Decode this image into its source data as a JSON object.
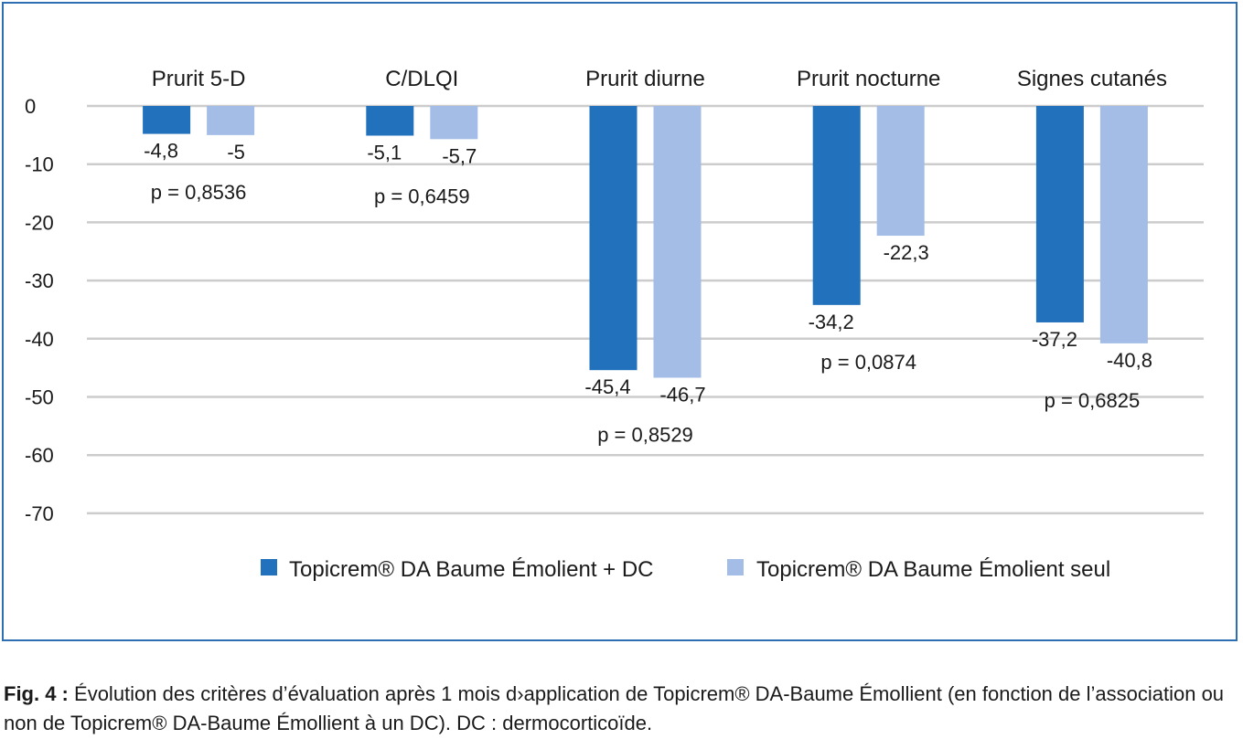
{
  "chart_data": {
    "type": "bar",
    "categories": [
      "Prurit 5-D",
      "C/DLQI",
      "Prurit diurne",
      "Prurit nocturne",
      "Signes cutanés"
    ],
    "series": [
      {
        "name": "Topicrem® DA Baume Émolient + DC",
        "values": [
          -4.8,
          -5.1,
          -45.4,
          -34.2,
          -37.2
        ],
        "color": "#2271bd",
        "labels": [
          "-4,8",
          "-5,1",
          "-45,4",
          "-34,2",
          "-37,2"
        ]
      },
      {
        "name": "Topicrem® DA Baume Émolient seul",
        "values": [
          -5,
          -5.7,
          -46.7,
          -22.3,
          -40.8
        ],
        "color": "#a3bde6",
        "labels": [
          "-5",
          "-5,7",
          "-46,7",
          "-22,3",
          "-40,8"
        ]
      }
    ],
    "p_values": [
      "p = 0,8536",
      "p = 0,6459",
      "p = 0,8529",
      "p = 0,0874",
      "p = 0,6825"
    ],
    "yticks": [
      0,
      -10,
      -20,
      -30,
      -40,
      -50,
      -60,
      -70
    ],
    "ytick_labels": [
      "0",
      "-10",
      "-20",
      "-30",
      "-40",
      "-50",
      "-60",
      "-70"
    ],
    "ylim": [
      -70,
      0
    ],
    "grid": true,
    "legend_position": "bottom-right",
    "grid_color": "#cccccc"
  },
  "caption": {
    "fig_label": "Fig. 4 :",
    "text": "Évolution des critères d’évaluation après 1 mois d›application de Topicrem® DA-Baume Émollient (en fonction de l’association ou non de Topicrem® DA-Baume Émollient à un DC). DC : dermocorticoïde."
  }
}
